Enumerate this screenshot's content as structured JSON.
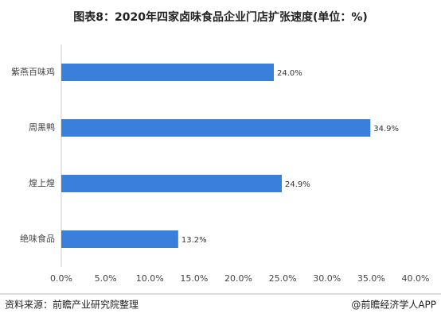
{
  "chart_data": {
    "type": "barh",
    "title": "图表8：2020年四家卤味食品企业门店扩张速度(单位：%)",
    "categories": [
      "紫燕百味鸡",
      "周黑鸭",
      "煌上煌",
      "绝味食品"
    ],
    "values": [
      24.0,
      34.9,
      24.9,
      13.2
    ],
    "value_labels": [
      "24.0%",
      "34.9%",
      "24.9%",
      "13.2%"
    ],
    "color": "#3b7fdd",
    "xlim": [
      0,
      40
    ],
    "xticks": [
      {
        "value": 0,
        "label": "0.0%"
      },
      {
        "value": 5,
        "label": "5.0%"
      },
      {
        "value": 10,
        "label": "10.0%"
      },
      {
        "value": 15,
        "label": "15.0%"
      },
      {
        "value": 20,
        "label": "20.0%"
      },
      {
        "value": 25,
        "label": "25.0%"
      },
      {
        "value": 30,
        "label": "30.0%"
      },
      {
        "value": 35,
        "label": "35.0%"
      },
      {
        "value": 40,
        "label": "40.0%"
      }
    ],
    "source": "资料来源：前瞻产业研究院整理",
    "brand": "@前瞻经济学人APP"
  }
}
